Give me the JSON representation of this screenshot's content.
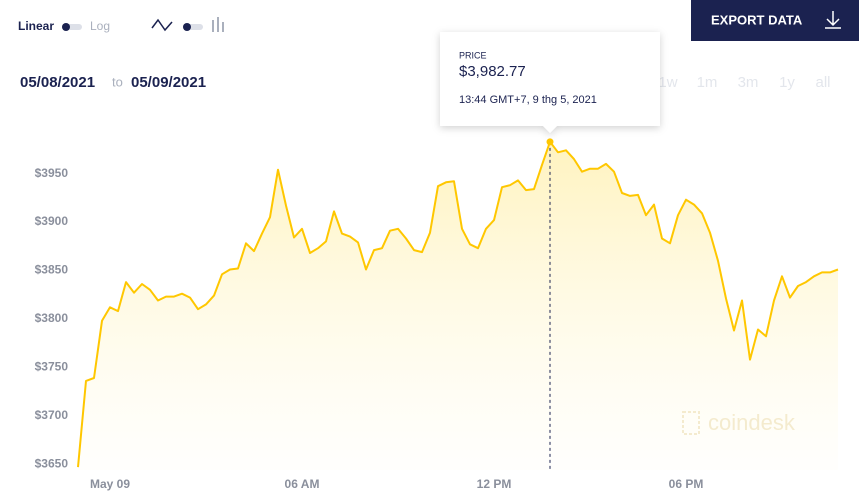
{
  "controls": {
    "scale_linear": "Linear",
    "scale_log": "Log",
    "export": "EXPORT DATA"
  },
  "range": {
    "from": "05/08/2021",
    "to_word": "to",
    "to": "05/09/2021",
    "periods": [
      "1w",
      "1m",
      "3m",
      "1y",
      "all"
    ]
  },
  "watermark": "coindesk",
  "chart_data": {
    "type": "area",
    "x": [
      -1,
      -0.75,
      -0.5,
      -0.25,
      0,
      0.25,
      0.5,
      0.75,
      1,
      1.25,
      1.5,
      1.75,
      2,
      2.25,
      2.5,
      2.75,
      3,
      3.25,
      3.5,
      3.75,
      4,
      4.25,
      4.5,
      4.75,
      5,
      5.25,
      5.5,
      5.75,
      6,
      6.25,
      6.5,
      6.75,
      7,
      7.25,
      7.5,
      7.75,
      8,
      8.25,
      8.5,
      8.75,
      9,
      9.25,
      9.5,
      9.75,
      10,
      10.25,
      10.5,
      10.75,
      11,
      11.25,
      11.5,
      11.75,
      12,
      12.25,
      12.5,
      12.75,
      13,
      13.25,
      13.5,
      13.75,
      14,
      14.25,
      14.5,
      14.75,
      15,
      15.25,
      15.5,
      15.75,
      16,
      16.25,
      16.5,
      16.75,
      17,
      17.25,
      17.5,
      17.75,
      18,
      18.25,
      18.5,
      18.75,
      19,
      19.25,
      19.5,
      19.75,
      20,
      20.25,
      20.5,
      20.75,
      21,
      21.25,
      21.5,
      21.75,
      22,
      22.25,
      22.5,
      22.75
    ],
    "series": [
      {
        "name": "Price",
        "color": "#ffc700",
        "values": [
          3647,
          3736,
          3739,
          3798,
          3812,
          3808,
          3838,
          3827,
          3836,
          3830,
          3819,
          3823,
          3823,
          3826,
          3822,
          3810,
          3815,
          3824,
          3846,
          3851,
          3852,
          3878,
          3870,
          3888,
          3905,
          3954,
          3917,
          3884,
          3893,
          3868,
          3873,
          3880,
          3911,
          3888,
          3885,
          3879,
          3851,
          3871,
          3873,
          3891,
          3893,
          3883,
          3871,
          3869,
          3889,
          3937,
          3941,
          3942,
          3893,
          3877,
          3873,
          3893,
          3902,
          3936,
          3938,
          3943,
          3933,
          3934,
          3959,
          3982.77,
          3972,
          3974,
          3965,
          3952,
          3955,
          3955,
          3960,
          3952,
          3930,
          3927,
          3928,
          3907,
          3918,
          3883,
          3878,
          3907,
          3923,
          3918,
          3909,
          3889,
          3860,
          3821,
          3788,
          3819,
          3758,
          3789,
          3782,
          3819,
          3844,
          3822,
          3834,
          3838,
          3844,
          3848,
          3848,
          3851
        ]
      }
    ],
    "xlim": [
      -1,
      22.75
    ],
    "xticks": [
      {
        "value": 0,
        "label": "May 09"
      },
      {
        "value": 6,
        "label": "06 AM"
      },
      {
        "value": 12,
        "label": "12 PM"
      },
      {
        "value": 18,
        "label": "06 PM"
      }
    ],
    "ylim": [
      3644,
      3995
    ],
    "yticks": [
      {
        "value": 3650,
        "label": "$3650"
      },
      {
        "value": 3700,
        "label": "$3700"
      },
      {
        "value": 3750,
        "label": "$3750"
      },
      {
        "value": 3800,
        "label": "$3800"
      },
      {
        "value": 3850,
        "label": "$3850"
      },
      {
        "value": 3900,
        "label": "$3900"
      },
      {
        "value": 3950,
        "label": "$3950"
      }
    ],
    "grid": false,
    "tooltip": {
      "x": 13.75,
      "title": "PRICE",
      "value": 3982.77,
      "value_label": "$3,982.77",
      "time": "13:44 GMT+7, 9 thg 5, 2021"
    }
  }
}
